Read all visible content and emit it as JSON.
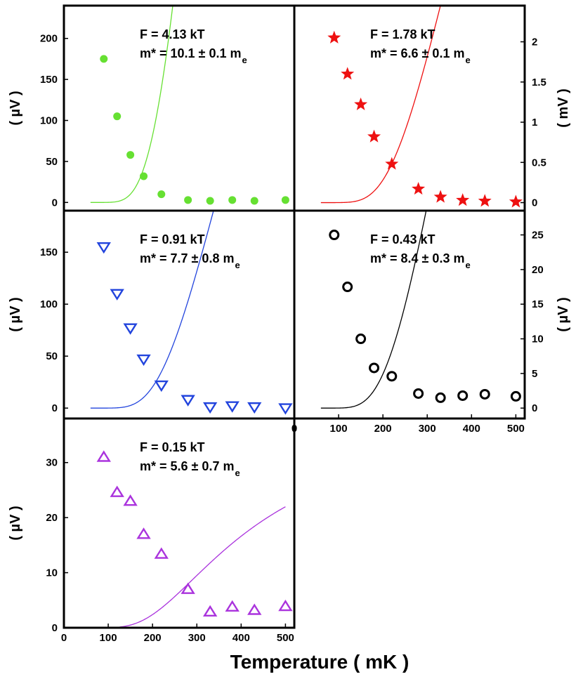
{
  "x_axis_title": "Temperature ( mK )",
  "chart_data": [
    {
      "type": "scatter",
      "panel": "top-left",
      "label_F": "F = 4.13 kT",
      "label_m_main": "m* = 10.1 ± 0.1 m",
      "label_m_sub": "e",
      "ylabel": "( µV )",
      "marker": "filled-circle",
      "color": "#66e032",
      "x": [
        90,
        120,
        150,
        180,
        220,
        280,
        330,
        380,
        430,
        500
      ],
      "y": [
        175,
        105,
        58,
        32,
        10,
        3,
        2,
        3,
        2,
        3
      ],
      "fit_amplitude": 3800,
      "fit_ratio": 1.6,
      "xlim": [
        0,
        520
      ],
      "ylim": [
        -10,
        240
      ],
      "yticks": [
        0,
        50,
        100,
        150,
        200
      ],
      "ytick_labels": [
        "0",
        "50",
        "100",
        "150",
        "200"
      ],
      "ytick_side": "left"
    },
    {
      "type": "scatter",
      "panel": "top-right",
      "label_F": "F = 1.78 kT",
      "label_m_main": "m* = 6.6 ± 0.1 m",
      "label_m_sub": "e",
      "ylabel": "( mV )",
      "marker": "star",
      "color": "#ee1111",
      "x": [
        90,
        120,
        150,
        180,
        220,
        280,
        330,
        380,
        430,
        500
      ],
      "y": [
        2.05,
        1.6,
        1.22,
        0.82,
        0.48,
        0.17,
        0.07,
        0.03,
        0.02,
        0.01
      ],
      "fit_amplitude": 13.1,
      "fit_ratio": 1.6,
      "xlim": [
        0,
        520
      ],
      "ylim": [
        -0.1,
        2.45
      ],
      "yticks": [
        0,
        0.5,
        1,
        1.5,
        2
      ],
      "ytick_labels": [
        "0",
        "0.5",
        "1",
        "1.5",
        "2"
      ],
      "ytick_side": "right"
    },
    {
      "type": "scatter",
      "panel": "middle-left",
      "label_F": "F = 0.91 kT",
      "label_m_main": "m* = 7.7 ± 0.8 m",
      "label_m_sub": "e",
      "ylabel": "( µV )",
      "marker": "down-triangle",
      "color": "#2244dd",
      "x": [
        90,
        120,
        150,
        180,
        220,
        280,
        330,
        380,
        430,
        500
      ],
      "y": [
        155,
        110,
        77,
        47,
        22,
        8,
        1,
        2,
        1,
        0
      ],
      "fit_amplitude": 950,
      "fit_ratio": 1.6,
      "xlim": [
        0,
        520
      ],
      "ylim": [
        -10,
        190
      ],
      "yticks": [
        0,
        50,
        100,
        150
      ],
      "ytick_labels": [
        "0",
        "50",
        "100",
        "150"
      ],
      "ytick_side": "left"
    },
    {
      "type": "scatter",
      "panel": "middle-right",
      "label_F": "F = 0.43 kT",
      "label_m_main": "m* = 8.4 ± 0.3 m",
      "label_m_sub": "e",
      "ylabel": "( µV )",
      "marker": "open-circle",
      "color": "#000000",
      "x": [
        90,
        120,
        150,
        180,
        220,
        280,
        330,
        380,
        430,
        500
      ],
      "y": [
        25,
        17.5,
        10,
        5.8,
        4.6,
        2.1,
        1.5,
        1.8,
        2.0,
        1.7
      ],
      "fit_amplitude": 190,
      "fit_ratio": 1.55,
      "fit_offset": 0,
      "xlim": [
        0,
        520
      ],
      "ylim": [
        -1.5,
        28.5
      ],
      "yticks": [
        0,
        5,
        10,
        15,
        20,
        25
      ],
      "ytick_labels": [
        "0",
        "5",
        "10",
        "15",
        "20",
        "25"
      ],
      "ytick_side": "right",
      "xticks": [
        0,
        100,
        200,
        300,
        400,
        500
      ],
      "xtick_labels": [
        "0",
        "100",
        "200",
        "300",
        "400",
        "500"
      ]
    },
    {
      "type": "scatter",
      "panel": "bottom-left",
      "label_F": "F = 0.15 kT",
      "label_m_main": "m* = 5.6 ± 0.7 m",
      "label_m_sub": "e",
      "ylabel": "( µV )",
      "marker": "up-triangle",
      "color": "#aa33dd",
      "x": [
        90,
        120,
        150,
        180,
        220,
        280,
        330,
        380,
        430,
        500
      ],
      "y": [
        31,
        24.6,
        23,
        17,
        13.4,
        7,
        2.9,
        3.8,
        3.2,
        3.9
      ],
      "fit_amplitude": 37.5,
      "fit_ratio": 1.3,
      "xlim": [
        0,
        520
      ],
      "ylim": [
        0,
        38
      ],
      "yticks": [
        0,
        10,
        20,
        30
      ],
      "ytick_labels": [
        "0",
        "10",
        "20",
        "30"
      ],
      "ytick_side": "left",
      "xticks": [
        0,
        100,
        200,
        300,
        400,
        500
      ],
      "xtick_labels": [
        "0",
        "100",
        "200",
        "300",
        "400",
        "500"
      ]
    }
  ]
}
